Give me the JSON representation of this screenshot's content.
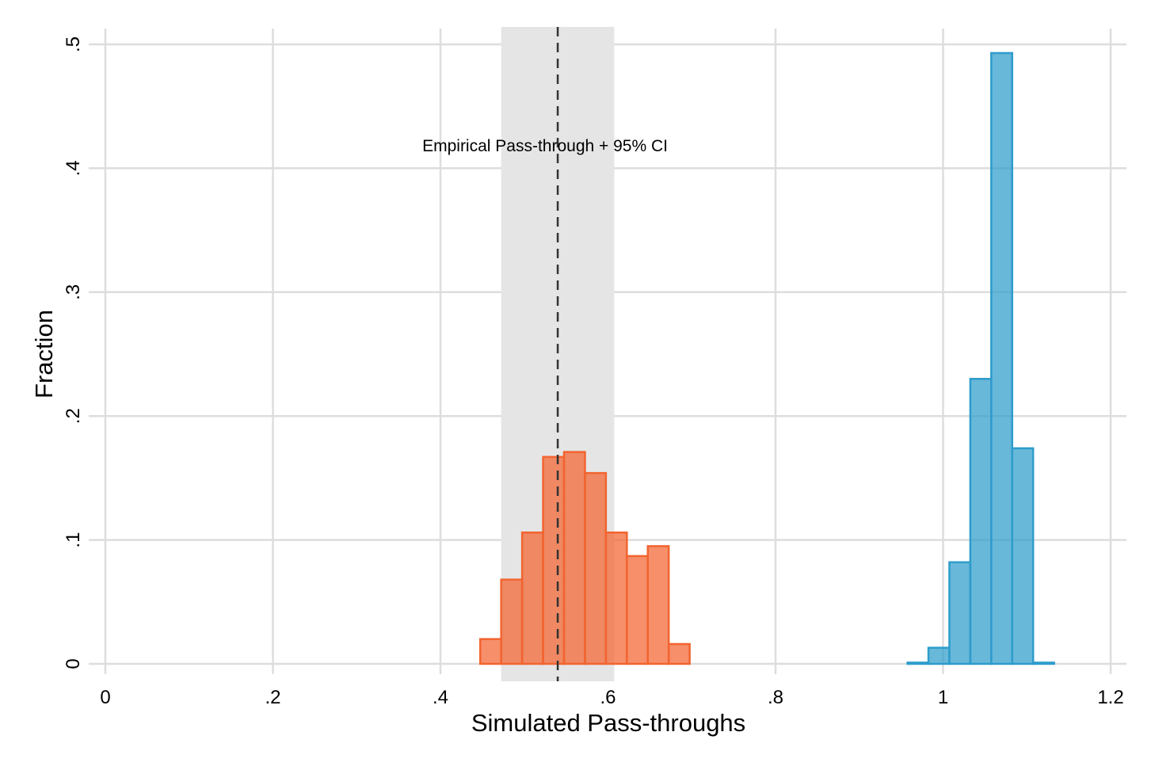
{
  "chart_data": {
    "type": "bar",
    "subtype": "histogram",
    "xlabel": "Simulated Pass-throughs",
    "ylabel": "Fraction",
    "xlim": [
      0,
      1.2
    ],
    "ylim": [
      0,
      0.5
    ],
    "x_ticks": [
      {
        "value": 0,
        "label": "0"
      },
      {
        "value": 0.2,
        "label": ".2"
      },
      {
        "value": 0.4,
        "label": ".4"
      },
      {
        "value": 0.6,
        "label": ".6"
      },
      {
        "value": 0.8,
        "label": ".8"
      },
      {
        "value": 1.0,
        "label": "1"
      },
      {
        "value": 1.2,
        "label": "1.2"
      }
    ],
    "y_ticks": [
      {
        "value": 0,
        "label": "0"
      },
      {
        "value": 0.1,
        "label": ".1"
      },
      {
        "value": 0.2,
        "label": ".2"
      },
      {
        "value": 0.3,
        "label": ".3"
      },
      {
        "value": 0.4,
        "label": ".4"
      },
      {
        "value": 0.5,
        "label": ".5"
      }
    ],
    "grid": true,
    "bin_width": 0.025,
    "series": [
      {
        "color": "#f26430",
        "bins": [
          {
            "x0": 0.4475,
            "value": 0.02
          },
          {
            "x0": 0.4725,
            "value": 0.068
          },
          {
            "x0": 0.4975,
            "value": 0.106
          },
          {
            "x0": 0.5225,
            "value": 0.167
          },
          {
            "x0": 0.5475,
            "value": 0.171
          },
          {
            "x0": 0.5725,
            "value": 0.154
          },
          {
            "x0": 0.5975,
            "value": 0.106
          },
          {
            "x0": 0.6225,
            "value": 0.087
          },
          {
            "x0": 0.6475,
            "value": 0.095
          },
          {
            "x0": 0.6725,
            "value": 0.016
          }
        ]
      },
      {
        "color": "#2e9ccc",
        "bins": [
          {
            "x0": 0.9575,
            "value": 0.001
          },
          {
            "x0": 0.9825,
            "value": 0.013
          },
          {
            "x0": 1.0075,
            "value": 0.082
          },
          {
            "x0": 1.0325,
            "value": 0.23
          },
          {
            "x0": 1.0575,
            "value": 0.493
          },
          {
            "x0": 1.0825,
            "value": 0.174
          },
          {
            "x0": 1.1075,
            "value": 0.001
          }
        ]
      }
    ],
    "reference_line": {
      "x": 0.54,
      "style": "dashed",
      "color": "#333333"
    },
    "ci_band": {
      "x0": 0.4725,
      "x1": 0.6075,
      "color": "#e5e5e5"
    },
    "annotation": {
      "text": "Empirical Pass-through + 95% CI",
      "x": 0.54,
      "y": 0.418
    }
  }
}
